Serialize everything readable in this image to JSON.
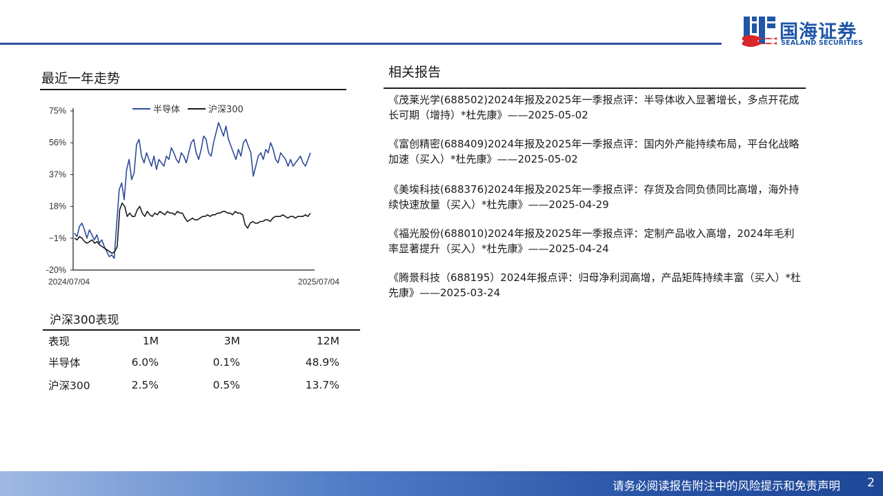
{
  "brand": {
    "cn": "国海证券",
    "en": "SEALAND SECURITIES",
    "color": "#1f56a8"
  },
  "trend": {
    "title": "最近一年走势"
  },
  "chart_data": {
    "type": "line",
    "legend_position": "top",
    "x_start": "2024/07/04",
    "x_end": "2025/07/04",
    "y_ticks": [
      "75%",
      "56%",
      "37%",
      "18%",
      "−1%",
      "-20%"
    ],
    "ylim": [
      -20,
      75
    ],
    "grid": false,
    "series": [
      {
        "name": "半导体",
        "color": "#2c4b9a",
        "values": [
          2,
          0,
          6,
          8,
          4,
          -1,
          4,
          1,
          -2,
          1,
          -4,
          -2,
          -6,
          -9,
          -12,
          -11,
          -13,
          8,
          28,
          32,
          22,
          40,
          46,
          34,
          38,
          55,
          58,
          48,
          44,
          50,
          46,
          42,
          48,
          40,
          46,
          44,
          42,
          48,
          46,
          53,
          50,
          46,
          44,
          50,
          48,
          44,
          50,
          56,
          58,
          50,
          46,
          52,
          60,
          58,
          50,
          48,
          56,
          62,
          68,
          64,
          60,
          66,
          58,
          54,
          50,
          46,
          52,
          48,
          56,
          58,
          54,
          50,
          36,
          42,
          48,
          50,
          46,
          52,
          50,
          56,
          52,
          46,
          44,
          50,
          48,
          46,
          42,
          46,
          42,
          44,
          46,
          48,
          44,
          42,
          46,
          50
        ]
      },
      {
        "name": "沪深300",
        "color": "#1a1a1a",
        "values": [
          -1,
          -2,
          0,
          -1,
          -3,
          -4,
          -3,
          -2,
          -4,
          -3,
          -5,
          -6,
          -7,
          -8,
          -9,
          -10,
          -9,
          -6,
          16,
          20,
          18,
          12,
          14,
          12,
          12,
          16,
          18,
          14,
          12,
          15,
          13,
          12,
          14,
          13,
          15,
          14,
          13,
          15,
          14,
          14,
          13,
          15,
          14,
          14,
          11,
          9,
          10,
          11,
          10,
          10,
          11,
          12,
          12,
          13,
          12,
          13,
          13,
          14,
          14,
          15,
          15,
          14,
          14,
          13,
          15,
          14,
          14,
          13,
          7,
          5,
          8,
          9,
          8,
          8,
          9,
          9,
          10,
          10,
          9,
          11,
          12,
          12,
          12,
          13,
          12,
          11,
          12,
          12,
          11,
          12,
          12,
          12,
          13,
          12,
          14
        ]
      }
    ]
  },
  "performance": {
    "title": "沪深300表现",
    "headers": [
      "表现",
      "1M",
      "3M",
      "12M"
    ],
    "rows": [
      {
        "name": "半导体",
        "m1": "6.0%",
        "m3": "0.1%",
        "m12": "48.9%"
      },
      {
        "name": "沪深300",
        "m1": "2.5%",
        "m3": "0.5%",
        "m12": "13.7%"
      }
    ]
  },
  "reports": {
    "title": "相关报告",
    "items": [
      "《茂莱光学(688502)2024年报及2025年一季报点评：半导体收入显著增长，多点开花成长可期（增持）*杜先康》——2025-05-02",
      "《富创精密(688409)2024年报及2025年一季报点评：国内外产能持续布局，平台化战略加速（买入）*杜先康》——2025-05-02",
      "《美埃科技(688376)2024年报及2025年一季报点评：存货及合同负债同比高增，海外持续快速放量（买入）*杜先康》——2025-04-29",
      "《福光股份(688010)2024年报及2025年一季报点评：定制产品收入高增，2024年毛利率显著提升（买入）*杜先康》——2025-04-24",
      "《腾景科技（688195）2024年报点评：归母净利润高增，产品矩阵持续丰富（买入）*杜先康》——2025-03-24"
    ]
  },
  "footer": {
    "disclaimer": "请务必阅读报告附注中的风险提示和免责声明",
    "page": "2"
  }
}
